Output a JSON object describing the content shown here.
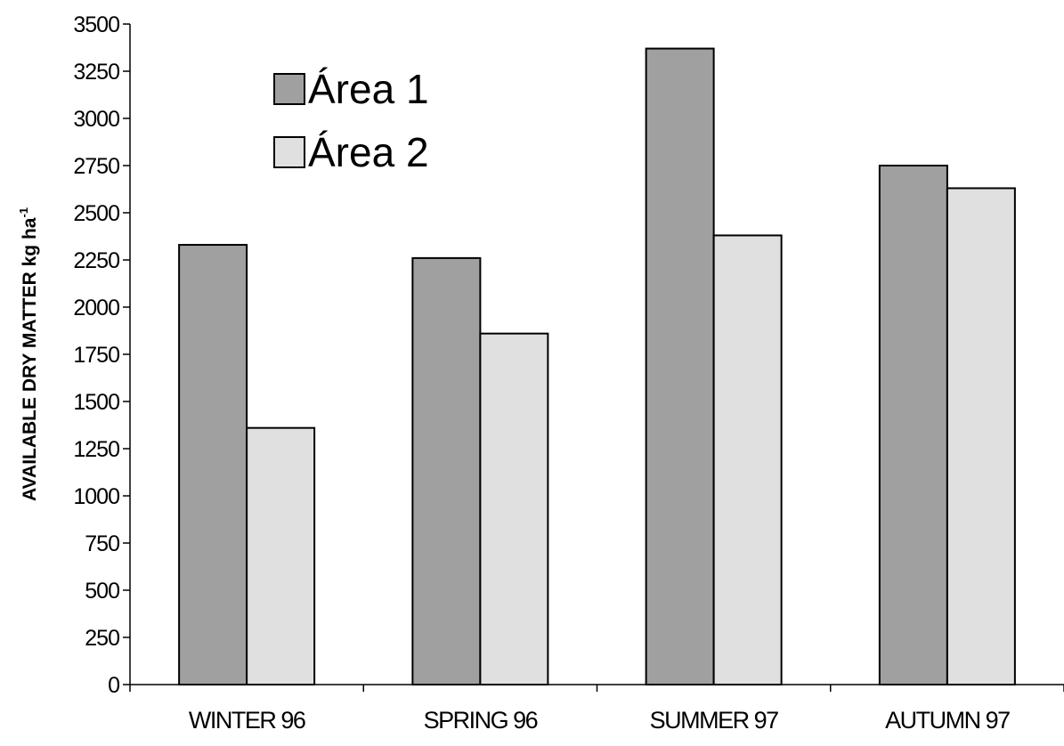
{
  "chart_data": {
    "type": "bar",
    "categories": [
      "WINTER 96",
      "SPRING 96",
      "SUMMER 97",
      "AUTUMN 97"
    ],
    "series": [
      {
        "name": "Área 1",
        "values": [
          2330,
          2260,
          3370,
          2750
        ],
        "color": "#a0a0a0"
      },
      {
        "name": "Área 2",
        "values": [
          1360,
          1860,
          2380,
          2630
        ],
        "color": "#e0e0e0"
      }
    ],
    "ylabel_main": "AVAILABLE DRY MATTER kg ha",
    "ylabel_sup": "-1",
    "ylim": [
      0,
      3500
    ],
    "ytick_labels": [
      "0",
      "250",
      "500",
      "750",
      "1000",
      "1250",
      "1500",
      "1750",
      "2000",
      "2250",
      "2500",
      "2750",
      "3000",
      "3250",
      "3500"
    ],
    "grid": false,
    "legend_position": "top-left"
  }
}
